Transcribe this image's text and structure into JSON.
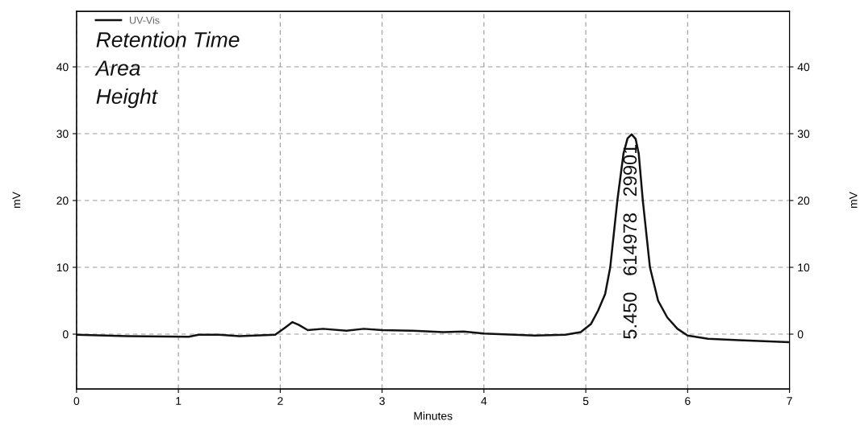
{
  "chart_data": {
    "type": "line",
    "xlabel": "Minutes",
    "ylabel": "mV",
    "y2label": "mV",
    "xlim": [
      0,
      7
    ],
    "xticks": [
      0,
      1,
      2,
      3,
      4,
      5,
      6,
      7
    ],
    "ylim": [
      -8.2,
      48.3
    ],
    "yticks": [
      0,
      10,
      20,
      30,
      40
    ],
    "y2lim": [
      -8.2,
      48.3
    ],
    "y2ticks": [
      0,
      10,
      20,
      30,
      40
    ],
    "grid": true,
    "legend": "top left",
    "marker": "none",
    "line_style": "solid",
    "series": [
      {
        "name": "UV-Vis",
        "color": "#111111",
        "x": [
          0,
          0.5,
          1.1,
          1.2,
          1.4,
          1.6,
          1.95,
          2.05,
          2.12,
          2.18,
          2.27,
          2.42,
          2.65,
          2.82,
          3.0,
          3.3,
          3.6,
          3.8,
          4.0,
          4.5,
          4.8,
          4.95,
          5.05,
          5.12,
          5.19,
          5.24,
          5.31,
          5.37,
          5.41,
          5.45,
          5.49,
          5.52,
          5.56,
          5.63,
          5.71,
          5.8,
          5.9,
          6.0,
          6.2,
          6.5,
          7.0
        ],
        "values": [
          -0.1,
          -0.3,
          -0.4,
          -0.1,
          -0.1,
          -0.3,
          -0.1,
          1.0,
          1.8,
          1.4,
          0.6,
          0.8,
          0.5,
          0.8,
          0.6,
          0.5,
          0.3,
          0.4,
          0.1,
          -0.2,
          -0.1,
          0.3,
          1.5,
          3.5,
          6,
          10,
          20,
          27,
          29.3,
          29.9,
          29.2,
          27,
          20,
          10,
          5,
          2.5,
          0.8,
          -0.2,
          -0.7,
          -0.9,
          -1.2
        ]
      }
    ],
    "annotations": [
      "Retention Time",
      "Area",
      "Height",
      "5.450   614978   29901"
    ]
  }
}
